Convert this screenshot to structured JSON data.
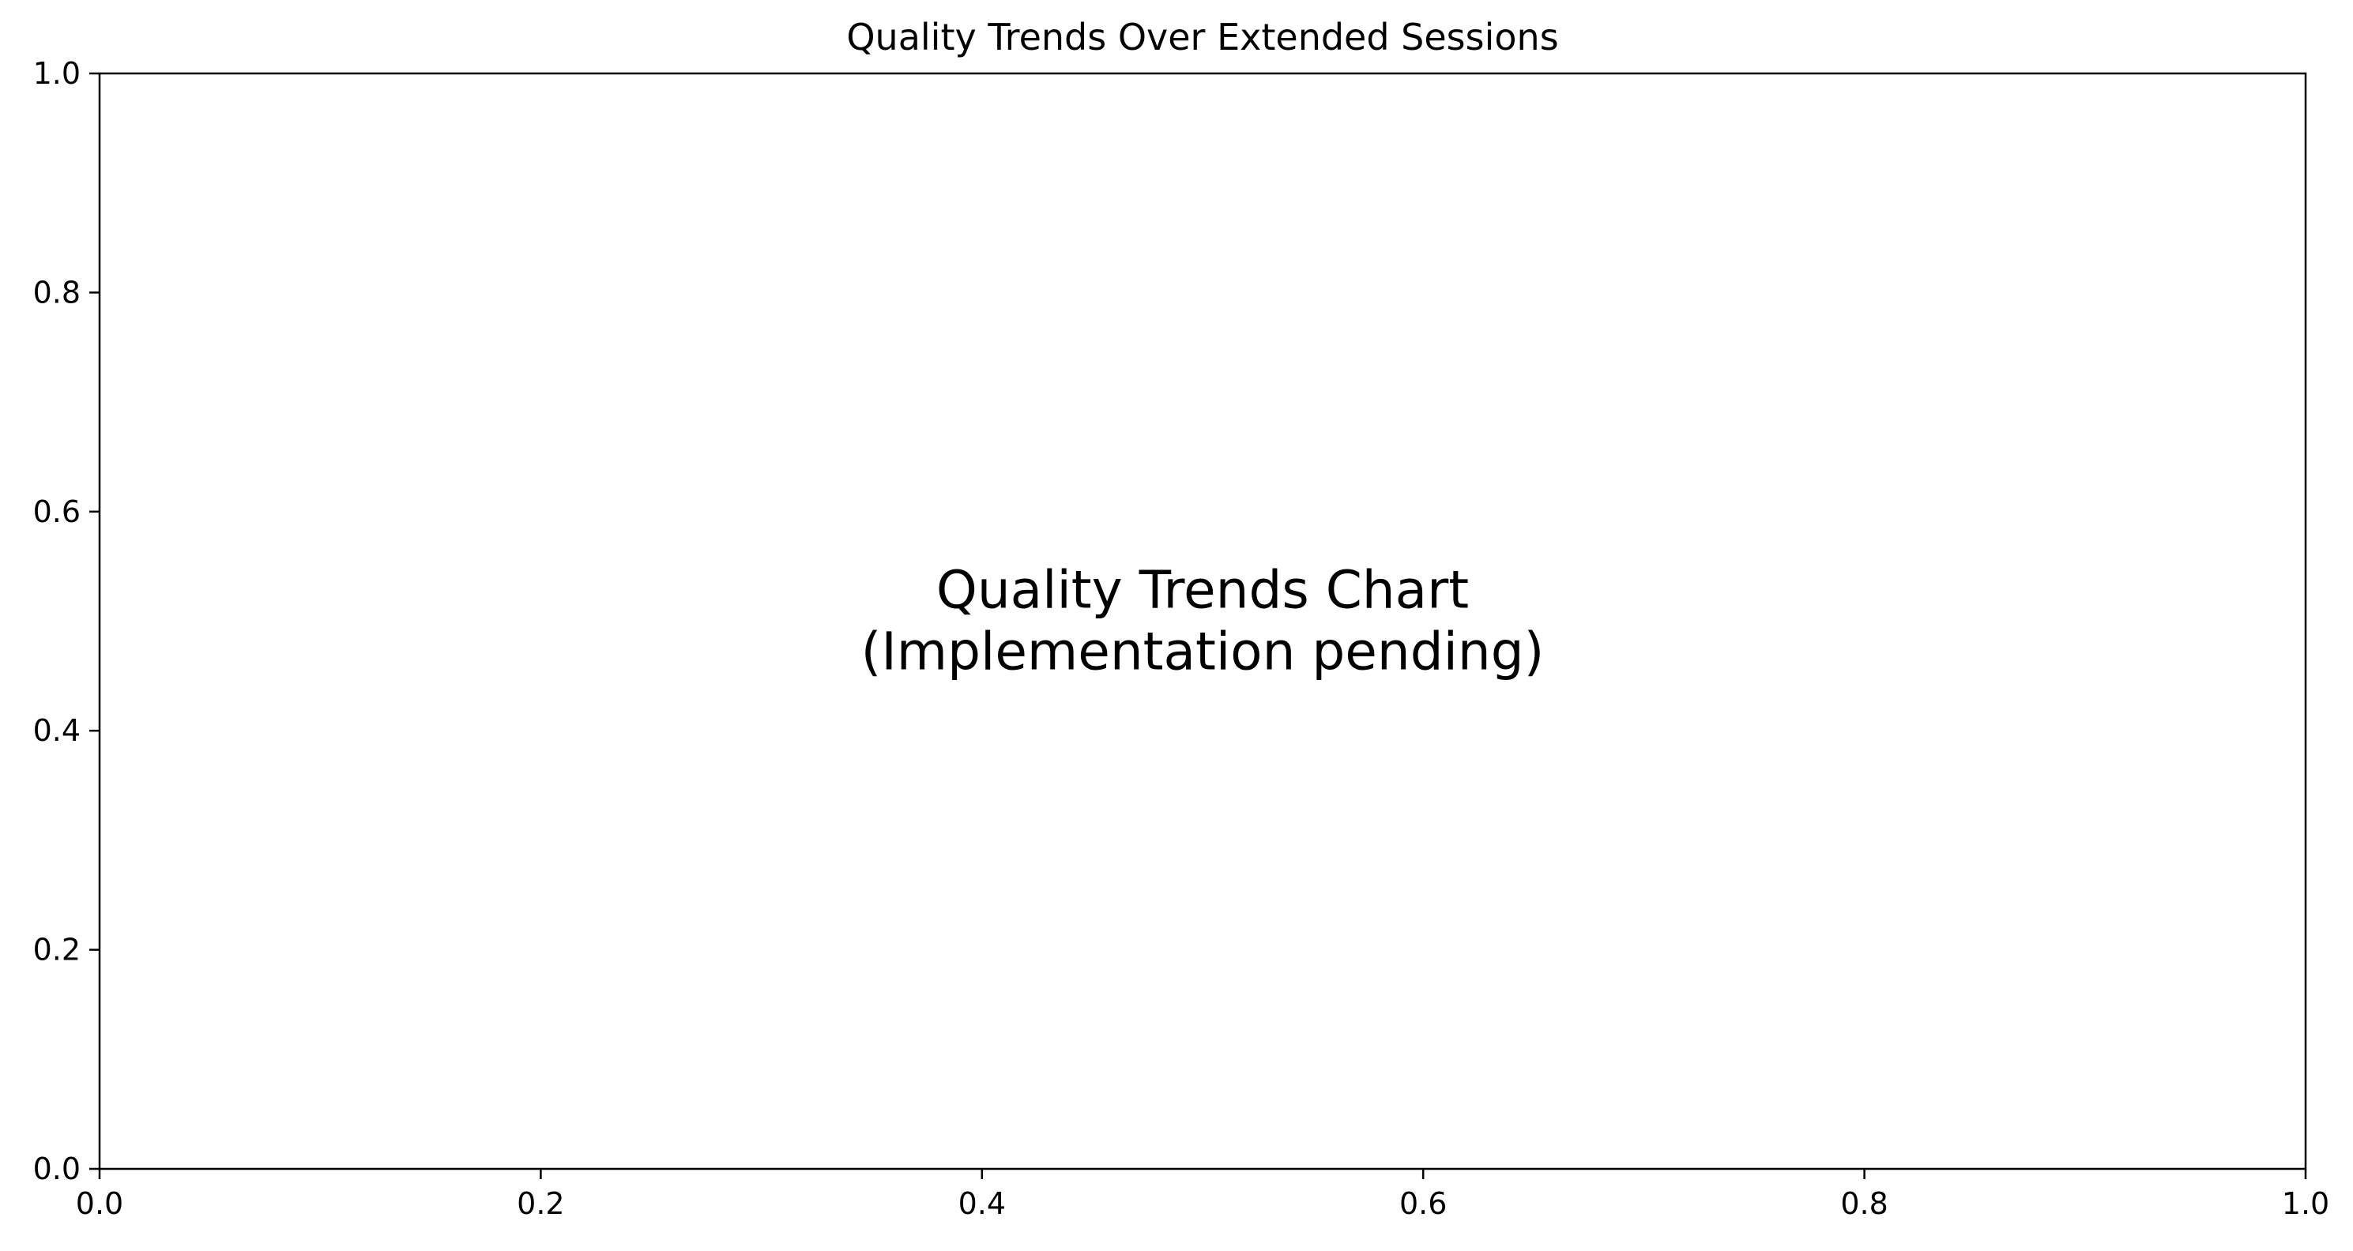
{
  "chart_data": {
    "type": "line",
    "title": "Quality Trends Over Extended Sessions",
    "xlabel": "",
    "ylabel": "",
    "xlim": [
      0.0,
      1.0
    ],
    "ylim": [
      0.0,
      1.0
    ],
    "x_ticks": [
      "0.0",
      "0.2",
      "0.4",
      "0.6",
      "0.8",
      "1.0"
    ],
    "y_ticks": [
      "0.0",
      "0.2",
      "0.4",
      "0.6",
      "0.8",
      "1.0"
    ],
    "series": [],
    "grid": false,
    "annotation": {
      "lines": [
        "Quality Trends Chart",
        "(Implementation pending)"
      ],
      "x": 0.5,
      "y": 0.5
    }
  }
}
